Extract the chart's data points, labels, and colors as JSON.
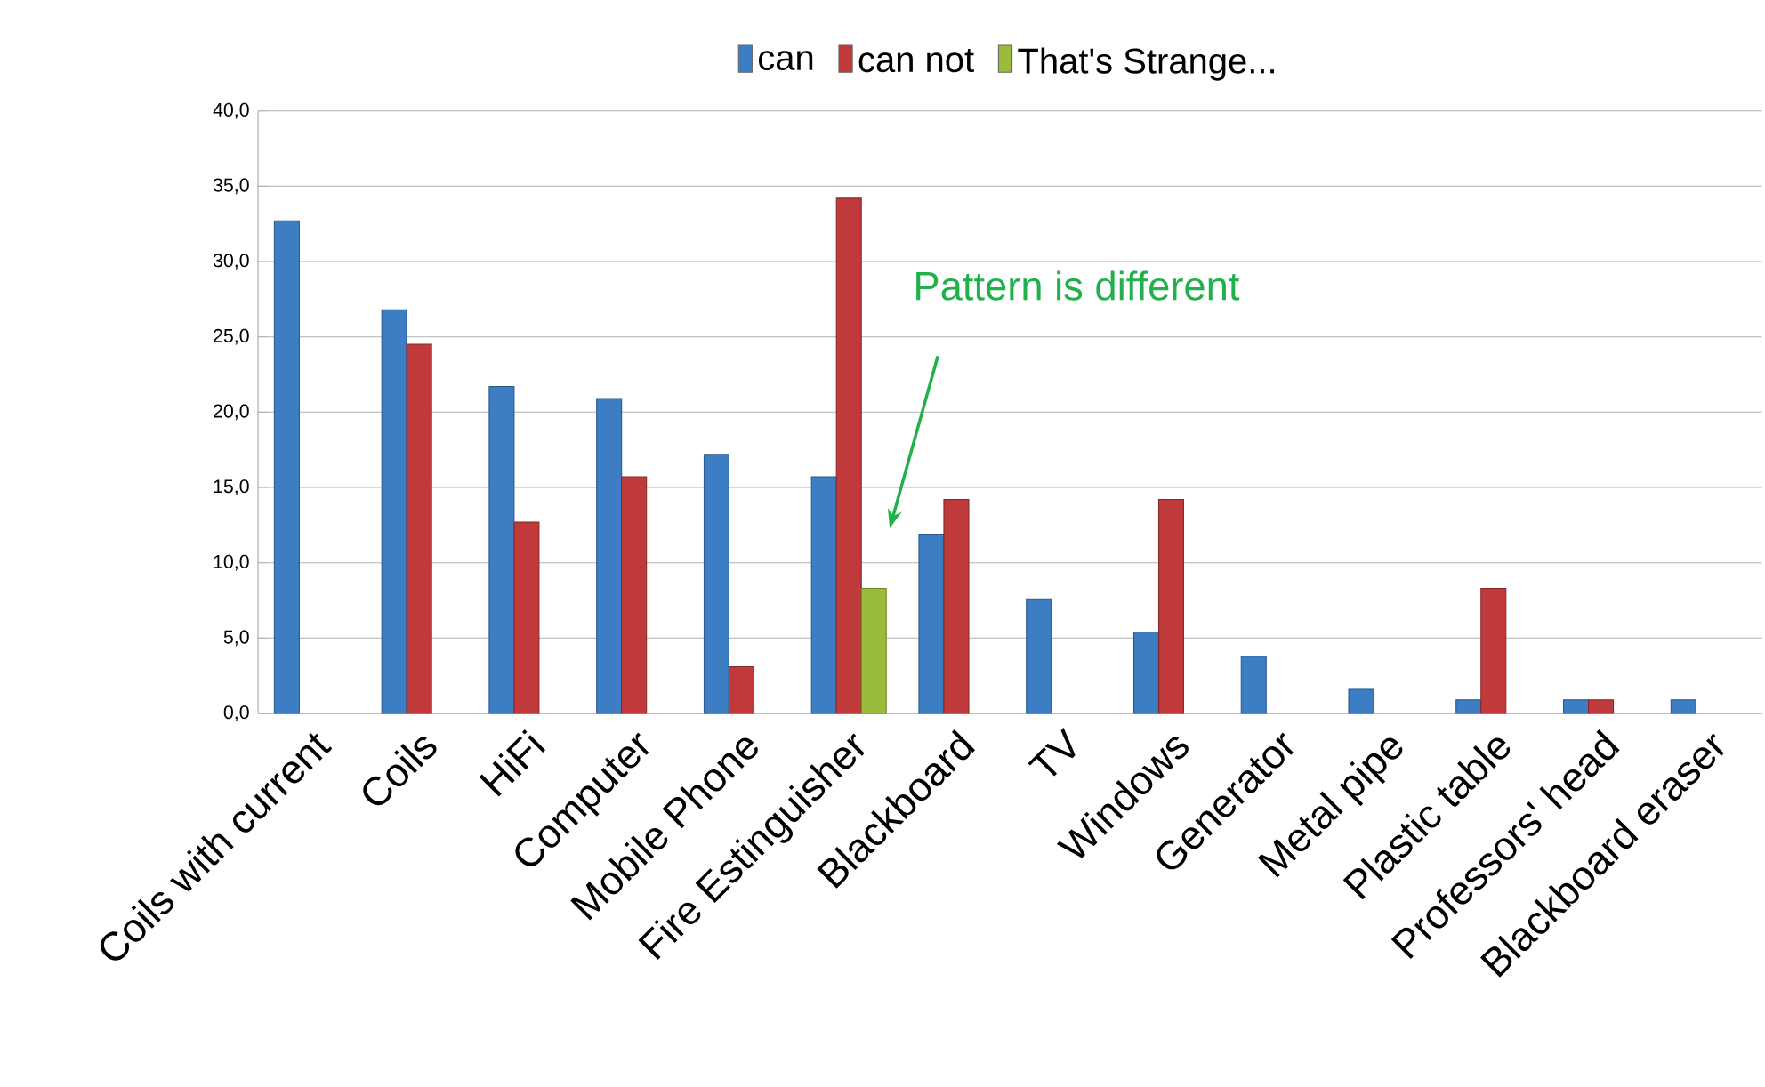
{
  "chart_data": {
    "type": "bar",
    "categories": [
      "Coils with current",
      "Coils",
      "HiFi",
      "Computer",
      "Mobile Phone",
      "Fire Estinguisher",
      "Blackboard",
      "TV",
      "Windows",
      "Generator",
      "Metal pipe",
      "Plastic table",
      "Professors' head",
      "Blackboard eraser"
    ],
    "series": [
      {
        "name": "can",
        "color": "#3c7dc4",
        "values": [
          32.7,
          26.8,
          21.7,
          20.9,
          17.2,
          15.7,
          11.9,
          7.6,
          5.4,
          3.8,
          1.6,
          0.9,
          0.9,
          0.9
        ]
      },
      {
        "name": "can not",
        "color": "#c0393b",
        "values": [
          null,
          24.5,
          12.7,
          15.7,
          3.1,
          34.2,
          14.2,
          null,
          14.2,
          null,
          null,
          8.3,
          0.9,
          null
        ]
      },
      {
        "name": "That's Strange...",
        "color": "#9bbb3b",
        "values": [
          null,
          null,
          null,
          null,
          null,
          8.3,
          null,
          null,
          null,
          null,
          null,
          null,
          null,
          null
        ]
      }
    ],
    "ylim": [
      0,
      40
    ],
    "yticks": [
      {
        "value": 0,
        "label": "0,0"
      },
      {
        "value": 5,
        "label": "5,0"
      },
      {
        "value": 10,
        "label": "10,0"
      },
      {
        "value": 15,
        "label": "15,0"
      },
      {
        "value": 20,
        "label": "20,0"
      },
      {
        "value": 25,
        "label": "25,0"
      },
      {
        "value": 30,
        "label": "30,0"
      },
      {
        "value": 35,
        "label": "35,0"
      },
      {
        "value": 40,
        "label": "40,0"
      }
    ],
    "grid": "y",
    "legend": "top",
    "annotations": [
      "Pattern is different"
    ]
  }
}
